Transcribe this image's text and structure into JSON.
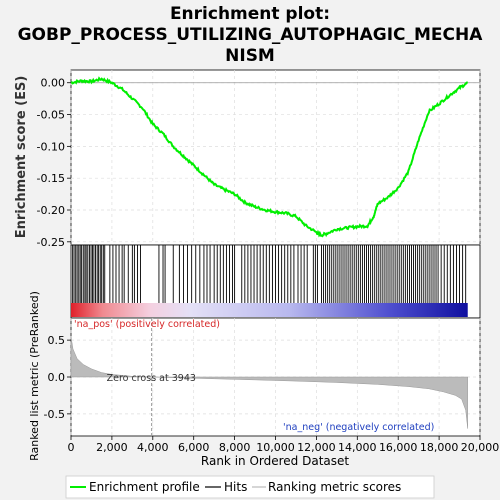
{
  "title_lines": [
    "Enrichment plot:",
    "GOBP_PROCESS_UTILIZING_AUTOPHAGIC_MECHA",
    "NISM"
  ],
  "chart_data": {
    "type": "line",
    "es_panel": {
      "ylabel": "Enrichment score (ES)",
      "ylim": [
        -0.255,
        0.02
      ],
      "yticks": [
        0.0,
        -0.05,
        -0.1,
        -0.15,
        -0.2,
        -0.25
      ],
      "ytick_labels": [
        "0.00",
        "-0.05",
        "-0.10",
        "-0.15",
        "-0.20",
        "-0.25"
      ],
      "series": [
        {
          "name": "Enrichment profile",
          "color": "#00ee00",
          "x": [
            0,
            500,
            1000,
            1500,
            2000,
            2500,
            3000,
            3500,
            4000,
            4500,
            5000,
            5500,
            6000,
            6500,
            7000,
            7500,
            8000,
            8500,
            9000,
            9500,
            10000,
            10500,
            11000,
            11500,
            12000,
            12200,
            12500,
            13000,
            13500,
            14000,
            14500,
            14800,
            15000,
            15500,
            16000,
            16500,
            17000,
            17500,
            18000,
            18500,
            19000,
            19400
          ],
          "y": [
            0.0,
            0.003,
            0.002,
            0.006,
            0.0,
            -0.01,
            -0.025,
            -0.04,
            -0.065,
            -0.08,
            -0.1,
            -0.115,
            -0.13,
            -0.145,
            -0.16,
            -0.168,
            -0.175,
            -0.188,
            -0.195,
            -0.2,
            -0.203,
            -0.205,
            -0.21,
            -0.225,
            -0.235,
            -0.24,
            -0.237,
            -0.23,
            -0.228,
            -0.226,
            -0.225,
            -0.21,
            -0.19,
            -0.18,
            -0.165,
            -0.14,
            -0.09,
            -0.045,
            -0.033,
            -0.02,
            -0.008,
            0.0
          ]
        }
      ]
    },
    "hits_panel": {
      "hit_positions": [
        80,
        150,
        230,
        300,
        380,
        450,
        520,
        600,
        680,
        740,
        820,
        900,
        980,
        1050,
        1120,
        1200,
        1280,
        1350,
        1430,
        1500,
        1580,
        1650,
        1900,
        2050,
        2200,
        2350,
        2500,
        2600,
        2800,
        3000,
        3100,
        3250,
        3400,
        4300,
        4500,
        4600,
        5000,
        5300,
        5500,
        5700,
        5900,
        6100,
        6300,
        6500,
        6650,
        6800,
        7000,
        7150,
        7300,
        7450,
        7600,
        7750,
        7900,
        8000,
        8350,
        8500,
        8650,
        8800,
        8950,
        9100,
        9250,
        9400,
        9550,
        9700,
        9850,
        10000,
        10150,
        10300,
        10450,
        10600,
        10750,
        10900,
        11100,
        11250,
        11400,
        11550,
        11850,
        11950,
        12050,
        12250,
        12350,
        12450,
        12550,
        12650,
        12750,
        12850,
        12950,
        13050,
        13150,
        13250,
        13350,
        13450,
        13550,
        13650,
        13750,
        13850,
        13950,
        14050,
        14150,
        14250,
        14350,
        14450,
        14550,
        14650,
        14750,
        14850,
        14950,
        15050,
        15150,
        15250,
        15350,
        15450,
        15550,
        15650,
        15750,
        15850,
        15950,
        16050,
        16150,
        16250,
        16350,
        16450,
        16550,
        16650,
        16750,
        16850,
        16950,
        17050,
        17150,
        17250,
        17350,
        17450,
        17550,
        17650,
        17750,
        17850,
        17950,
        18100,
        18250,
        18400,
        18550,
        18700,
        18850,
        19000,
        19150,
        19300
      ]
    },
    "metric_panel": {
      "ylabel": "Ranked list metric (PreRanked)",
      "ylim": [
        -0.8,
        0.8
      ],
      "yticks": [
        0.5,
        0.0,
        -0.5
      ],
      "ytick_labels": [
        "0.5",
        "0.0",
        "-0.5"
      ],
      "x": [
        0,
        100,
        300,
        600,
        1000,
        1500,
        2000,
        3000,
        3943,
        5000,
        7000,
        9000,
        11000,
        13000,
        15000,
        16500,
        17500,
        18200,
        18800,
        19100,
        19300,
        19400
      ],
      "y": [
        0.55,
        0.38,
        0.25,
        0.17,
        0.11,
        0.06,
        0.035,
        0.01,
        0.0,
        -0.01,
        -0.025,
        -0.04,
        -0.055,
        -0.075,
        -0.1,
        -0.13,
        -0.16,
        -0.2,
        -0.25,
        -0.3,
        -0.45,
        -0.7
      ],
      "zero_cross": 3943,
      "zero_cross_label": "Zero cross at 3943",
      "pos_label": "'na_pos' (positively correlated)",
      "neg_label": "'na_neg' (negatively correlated)"
    },
    "xaxis": {
      "xlabel": "Rank in Ordered Dataset",
      "xlim": [
        0,
        20000
      ],
      "xticks": [
        0,
        2000,
        4000,
        6000,
        8000,
        10000,
        12000,
        14000,
        16000,
        18000,
        20000
      ],
      "xtick_labels": [
        "0",
        "2,000",
        "4,000",
        "6,000",
        "8,000",
        "10,000",
        "12,000",
        "14,000",
        "16,000",
        "18,000",
        "20,000"
      ]
    },
    "n_genes": 19400,
    "legend": {
      "placement": "bottom",
      "items": [
        {
          "label": "Enrichment profile",
          "color": "#00ee00"
        },
        {
          "label": "Hits",
          "color": "#000000"
        },
        {
          "label": "Ranking metric scores",
          "color": "#bbbbbb"
        }
      ]
    },
    "grid": true
  }
}
